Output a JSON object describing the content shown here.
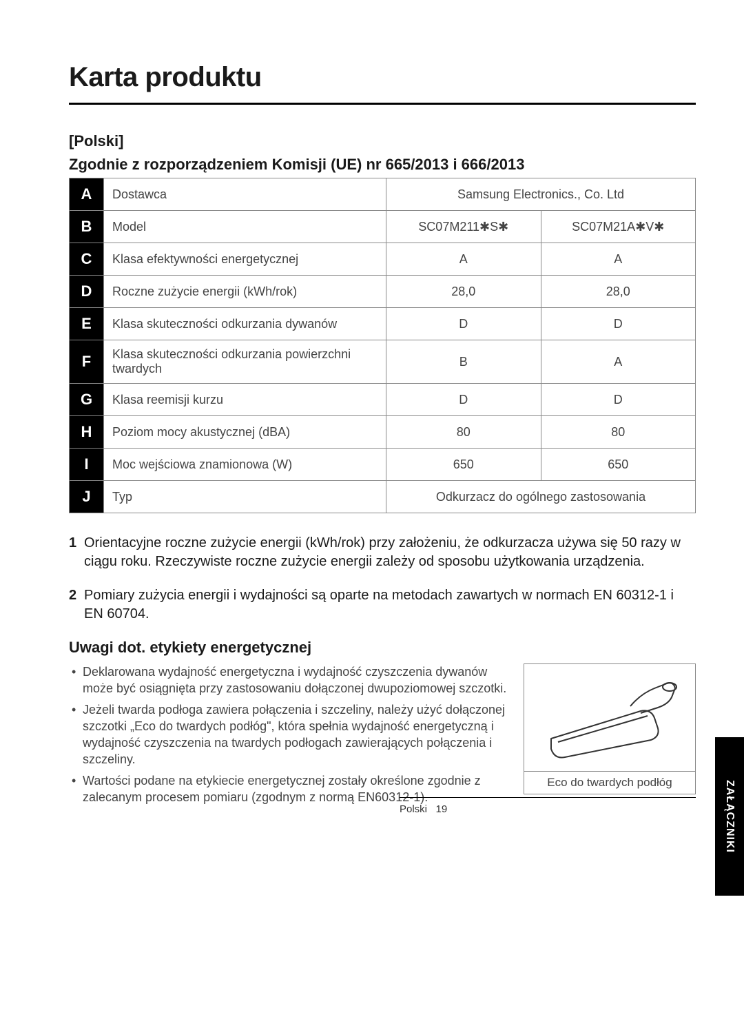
{
  "title": "Karta produktu",
  "lang_label": "[Polski]",
  "regulation": "Zgodnie z rozporządzeniem Komisji (UE) nr 665/2013 i 666/2013",
  "table": {
    "rows": [
      {
        "letter": "A",
        "label": "Dostawca",
        "span": true,
        "value": "Samsung Electronics., Co. Ltd"
      },
      {
        "letter": "B",
        "label": "Model",
        "v1": "SC07M211✱S✱",
        "v2": "SC07M21A✱V✱"
      },
      {
        "letter": "C",
        "label": "Klasa efektywności energetycznej",
        "v1": "A",
        "v2": "A"
      },
      {
        "letter": "D",
        "label": "Roczne zużycie energii (kWh/rok)",
        "v1": "28,0",
        "v2": "28,0"
      },
      {
        "letter": "E",
        "label": "Klasa skuteczności odkurzania dywanów",
        "v1": "D",
        "v2": "D"
      },
      {
        "letter": "F",
        "label": "Klasa skuteczności odkurzania powierzchni twardych",
        "v1": "B",
        "v2": "A"
      },
      {
        "letter": "G",
        "label": "Klasa reemisji kurzu",
        "v1": "D",
        "v2": "D"
      },
      {
        "letter": "H",
        "label": "Poziom mocy akustycznej (dBA)",
        "v1": "80",
        "v2": "80"
      },
      {
        "letter": "I",
        "label": "Moc wejściowa znamionowa (W)",
        "v1": "650",
        "v2": "650"
      },
      {
        "letter": "J",
        "label": "Typ",
        "span": true,
        "value": "Odkurzacz do ogólnego zastosowania"
      }
    ],
    "letter_bg": "#000000",
    "letter_fg": "#ffffff",
    "border_color": "#888888",
    "font_size": 18
  },
  "notes": [
    "Orientacyjne roczne zużycie energii (kWh/rok) przy założeniu, że odkurzacza używa się 50 razy w ciągu roku. Rzeczywiste roczne zużycie energii zależy od sposobu użytkowania urządzenia.",
    "Pomiary zużycia energii i wydajności są oparte na metodach zawartych w normach EN 60312-1 i EN 60704."
  ],
  "subhead": "Uwagi dot. etykiety energetycznej",
  "bullets": [
    "Deklarowana wydajność energetyczna i wydajność czyszczenia dywanów może być osiągnięta przy zastosowaniu dołączonej dwupoziomowej szczotki.",
    "Jeżeli twarda podłoga zawiera połączenia i szczeliny, należy użyć dołączonej szczotki „Eco do twardych podłóg\", która spełnia wydajność energetyczną i wydajność czyszczenia na twardych podłogach zawierających połączenia i szczeliny.",
    "Wartości podane na etykiecie energetycznej zostały określone zgodnie z zalecanym procesem pomiaru (zgodnym z normą EN60312-1)."
  ],
  "figure_caption": "Eco do twardych podłóg",
  "sidetab": "ZAŁĄCZNIKI",
  "footer_lang": "Polski",
  "footer_page": "19"
}
